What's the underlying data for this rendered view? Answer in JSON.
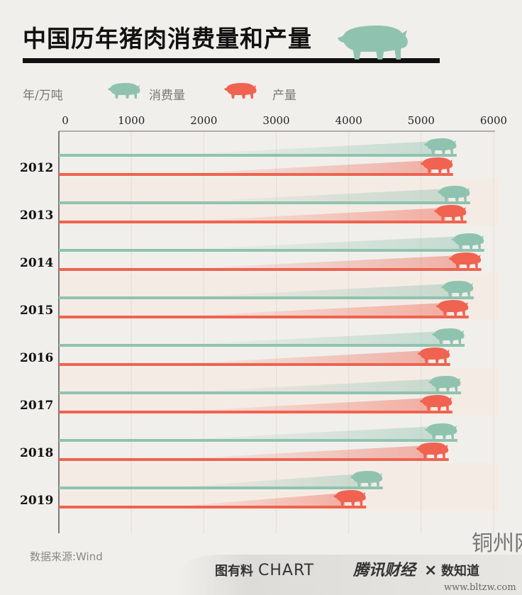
{
  "chart_data": {
    "type": "bar",
    "orientation": "horizontal",
    "title": "中国历年猪肉消费量和产量",
    "unit_label": "年/万吨",
    "categories": [
      "2012",
      "2013",
      "2014",
      "2015",
      "2016",
      "2017",
      "2018",
      "2019"
    ],
    "series": [
      {
        "name": "消费量",
        "color": "#8fc3b0",
        "values": [
          5490,
          5675,
          5870,
          5725,
          5600,
          5550,
          5500,
          4470
        ]
      },
      {
        "name": "产量",
        "color": "#ef6350",
        "values": [
          5440,
          5626,
          5830,
          5655,
          5400,
          5430,
          5380,
          4240
        ]
      }
    ],
    "xlim": [
      0,
      6000
    ],
    "xticks": [
      "0",
      "1000",
      "2000",
      "3000",
      "4000",
      "5000",
      "6000"
    ],
    "legend": "top-left",
    "grid": true,
    "source": "数据来源:Wind"
  },
  "footer": {
    "brand1": "图有料",
    "brand2": "CHART",
    "brand3": "腾讯财经",
    "cross": "×",
    "brand4": "数知道",
    "watermark": "铜州网",
    "url": "www.bltzw.com"
  }
}
